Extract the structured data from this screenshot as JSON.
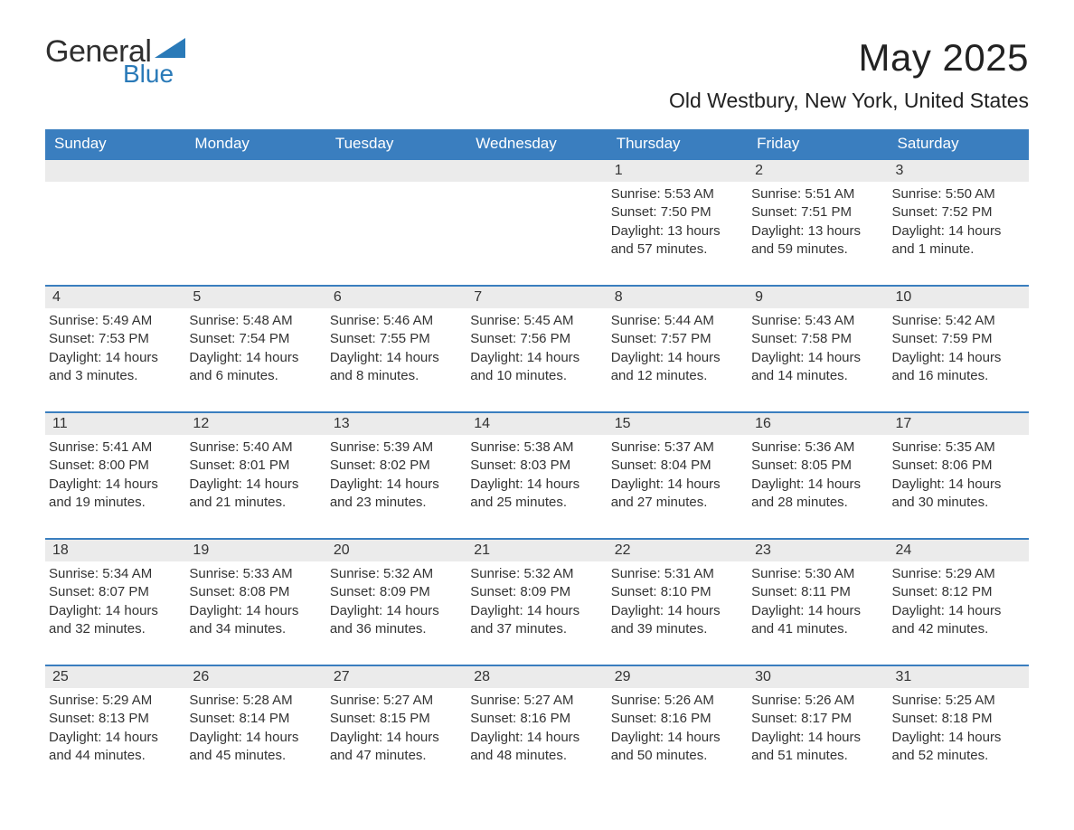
{
  "brand": {
    "general": "General",
    "blue": "Blue",
    "accent": "#2a7ab8"
  },
  "title": "May 2025",
  "location": "Old Westbury, New York, United States",
  "colors": {
    "header_bg": "#3a7ebf",
    "header_text": "#ffffff",
    "row_sep": "#3a7ebf",
    "daynum_bg": "#ebebeb",
    "text": "#333333",
    "background": "#ffffff"
  },
  "typography": {
    "title_fontsize": 42,
    "location_fontsize": 23,
    "dow_fontsize": 17,
    "body_fontsize": 15
  },
  "layout": {
    "columns": 7,
    "rows": 5
  },
  "daysOfWeek": [
    "Sunday",
    "Monday",
    "Tuesday",
    "Wednesday",
    "Thursday",
    "Friday",
    "Saturday"
  ],
  "weeks": [
    [
      null,
      null,
      null,
      null,
      {
        "n": "1",
        "sunrise": "5:53 AM",
        "sunset": "7:50 PM",
        "daylight": "13 hours and 57 minutes."
      },
      {
        "n": "2",
        "sunrise": "5:51 AM",
        "sunset": "7:51 PM",
        "daylight": "13 hours and 59 minutes."
      },
      {
        "n": "3",
        "sunrise": "5:50 AM",
        "sunset": "7:52 PM",
        "daylight": "14 hours and 1 minute."
      }
    ],
    [
      {
        "n": "4",
        "sunrise": "5:49 AM",
        "sunset": "7:53 PM",
        "daylight": "14 hours and 3 minutes."
      },
      {
        "n": "5",
        "sunrise": "5:48 AM",
        "sunset": "7:54 PM",
        "daylight": "14 hours and 6 minutes."
      },
      {
        "n": "6",
        "sunrise": "5:46 AM",
        "sunset": "7:55 PM",
        "daylight": "14 hours and 8 minutes."
      },
      {
        "n": "7",
        "sunrise": "5:45 AM",
        "sunset": "7:56 PM",
        "daylight": "14 hours and 10 minutes."
      },
      {
        "n": "8",
        "sunrise": "5:44 AM",
        "sunset": "7:57 PM",
        "daylight": "14 hours and 12 minutes."
      },
      {
        "n": "9",
        "sunrise": "5:43 AM",
        "sunset": "7:58 PM",
        "daylight": "14 hours and 14 minutes."
      },
      {
        "n": "10",
        "sunrise": "5:42 AM",
        "sunset": "7:59 PM",
        "daylight": "14 hours and 16 minutes."
      }
    ],
    [
      {
        "n": "11",
        "sunrise": "5:41 AM",
        "sunset": "8:00 PM",
        "daylight": "14 hours and 19 minutes."
      },
      {
        "n": "12",
        "sunrise": "5:40 AM",
        "sunset": "8:01 PM",
        "daylight": "14 hours and 21 minutes."
      },
      {
        "n": "13",
        "sunrise": "5:39 AM",
        "sunset": "8:02 PM",
        "daylight": "14 hours and 23 minutes."
      },
      {
        "n": "14",
        "sunrise": "5:38 AM",
        "sunset": "8:03 PM",
        "daylight": "14 hours and 25 minutes."
      },
      {
        "n": "15",
        "sunrise": "5:37 AM",
        "sunset": "8:04 PM",
        "daylight": "14 hours and 27 minutes."
      },
      {
        "n": "16",
        "sunrise": "5:36 AM",
        "sunset": "8:05 PM",
        "daylight": "14 hours and 28 minutes."
      },
      {
        "n": "17",
        "sunrise": "5:35 AM",
        "sunset": "8:06 PM",
        "daylight": "14 hours and 30 minutes."
      }
    ],
    [
      {
        "n": "18",
        "sunrise": "5:34 AM",
        "sunset": "8:07 PM",
        "daylight": "14 hours and 32 minutes."
      },
      {
        "n": "19",
        "sunrise": "5:33 AM",
        "sunset": "8:08 PM",
        "daylight": "14 hours and 34 minutes."
      },
      {
        "n": "20",
        "sunrise": "5:32 AM",
        "sunset": "8:09 PM",
        "daylight": "14 hours and 36 minutes."
      },
      {
        "n": "21",
        "sunrise": "5:32 AM",
        "sunset": "8:09 PM",
        "daylight": "14 hours and 37 minutes."
      },
      {
        "n": "22",
        "sunrise": "5:31 AM",
        "sunset": "8:10 PM",
        "daylight": "14 hours and 39 minutes."
      },
      {
        "n": "23",
        "sunrise": "5:30 AM",
        "sunset": "8:11 PM",
        "daylight": "14 hours and 41 minutes."
      },
      {
        "n": "24",
        "sunrise": "5:29 AM",
        "sunset": "8:12 PM",
        "daylight": "14 hours and 42 minutes."
      }
    ],
    [
      {
        "n": "25",
        "sunrise": "5:29 AM",
        "sunset": "8:13 PM",
        "daylight": "14 hours and 44 minutes."
      },
      {
        "n": "26",
        "sunrise": "5:28 AM",
        "sunset": "8:14 PM",
        "daylight": "14 hours and 45 minutes."
      },
      {
        "n": "27",
        "sunrise": "5:27 AM",
        "sunset": "8:15 PM",
        "daylight": "14 hours and 47 minutes."
      },
      {
        "n": "28",
        "sunrise": "5:27 AM",
        "sunset": "8:16 PM",
        "daylight": "14 hours and 48 minutes."
      },
      {
        "n": "29",
        "sunrise": "5:26 AM",
        "sunset": "8:16 PM",
        "daylight": "14 hours and 50 minutes."
      },
      {
        "n": "30",
        "sunrise": "5:26 AM",
        "sunset": "8:17 PM",
        "daylight": "14 hours and 51 minutes."
      },
      {
        "n": "31",
        "sunrise": "5:25 AM",
        "sunset": "8:18 PM",
        "daylight": "14 hours and 52 minutes."
      }
    ]
  ],
  "labels": {
    "sunrise": "Sunrise: ",
    "sunset": "Sunset: ",
    "daylight": "Daylight: "
  }
}
